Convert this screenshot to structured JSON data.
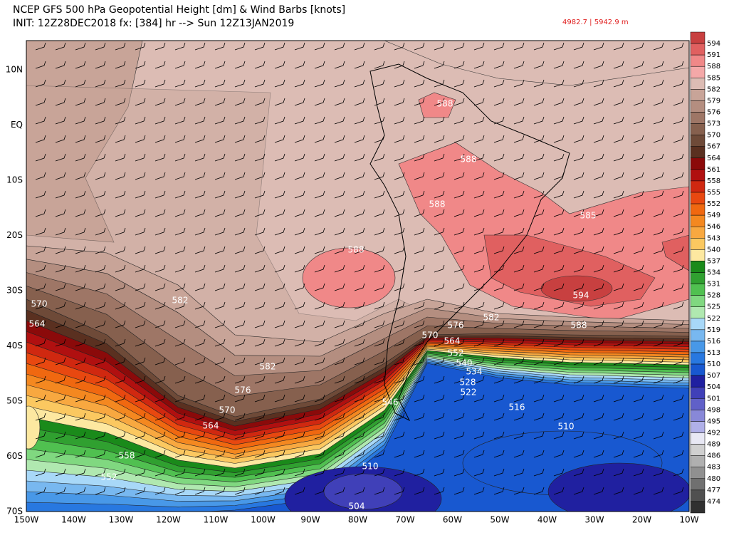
{
  "header": {
    "line1": "NCEP GFS 500 hPa Geopotential Height [dm] & Wind Barbs [knots]",
    "line2": "INIT: 12Z28DEC2018 fx: [384] hr --> Sun 12Z13JAN2019",
    "range": "4982.7 | 5942.9  m"
  },
  "lat_labels": [
    "10N",
    "EQ",
    "10S",
    "20S",
    "30S",
    "40S",
    "50S",
    "60S",
    "70S"
  ],
  "lon_labels": [
    "150W",
    "140W",
    "130W",
    "120W",
    "110W",
    "100W",
    "90W",
    "80W",
    "70W",
    "60W",
    "50W",
    "40W",
    "30W",
    "20W",
    "10W"
  ],
  "colorbar": {
    "levels": [
      594,
      591,
      588,
      585,
      582,
      579,
      576,
      573,
      570,
      567,
      564,
      561,
      558,
      555,
      552,
      549,
      546,
      543,
      540,
      537,
      534,
      531,
      528,
      525,
      522,
      519,
      516,
      513,
      510,
      507,
      504,
      501,
      498,
      495,
      492,
      489,
      486,
      483,
      480,
      477,
      474
    ],
    "colors": [
      "#c84040",
      "#e06060",
      "#f08888",
      "#f4a8a8",
      "#dcbcb4",
      "#c8a498",
      "#b48e80",
      "#9e7666",
      "#86604e",
      "#6e4a38",
      "#5a3020",
      "#8b0a0a",
      "#b01010",
      "#d02810",
      "#e84810",
      "#f06810",
      "#f48820",
      "#f8a840",
      "#fbc860",
      "#fde8a0",
      "#1a8a1a",
      "#30a030",
      "#50c050",
      "#80d880",
      "#b0e8b0",
      "#a8d8f8",
      "#78b8f0",
      "#4898e8",
      "#2878e0",
      "#1858d0",
      "#2020a0",
      "#4040b8",
      "#6060c8",
      "#8888d8",
      "#b0b0e8",
      "#e8e8f4",
      "#d0d0d0",
      "#b0b0b0",
      "#909090",
      "#707070",
      "#505050",
      "#303030"
    ]
  },
  "contour_labels": [
    "588",
    "588",
    "588",
    "585",
    "588",
    "594",
    "582",
    "570",
    "582",
    "576",
    "588",
    "564",
    "570",
    "564",
    "552",
    "540",
    "534",
    "582",
    "528",
    "522",
    "576",
    "546",
    "570",
    "516",
    "564",
    "510",
    "558",
    "552",
    "510",
    "504"
  ]
}
